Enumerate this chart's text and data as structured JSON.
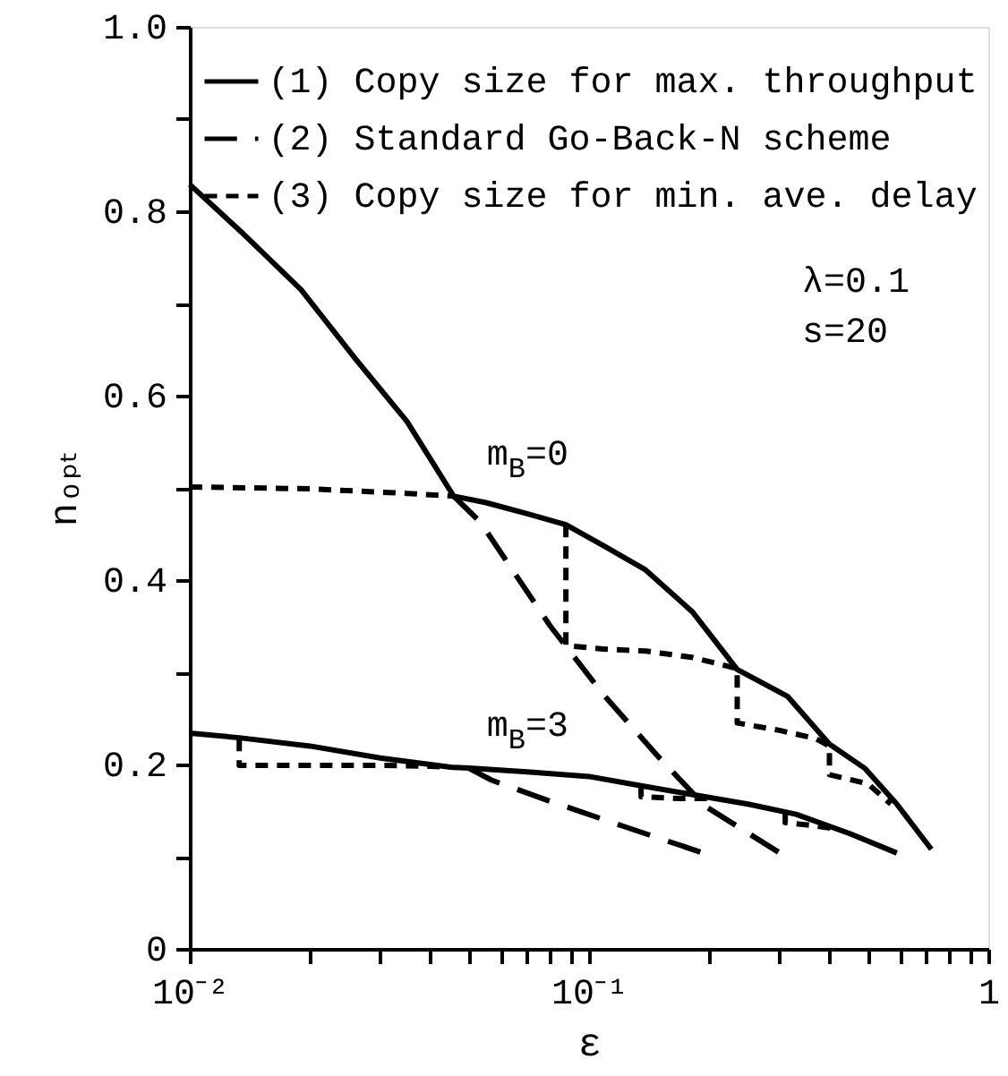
{
  "chart_data": {
    "type": "line",
    "xlabel": "ε",
    "ylabel": "nₒₚₜ",
    "log": "x",
    "xlim": [
      0.01,
      1
    ],
    "ylim": [
      0,
      1
    ],
    "xticks": [
      {
        "value": 0.01,
        "label": "10⁻²"
      },
      {
        "value": 0.02,
        "label": null
      },
      {
        "value": 0.03,
        "label": null
      },
      {
        "value": 0.04,
        "label": null
      },
      {
        "value": 0.05,
        "label": null
      },
      {
        "value": 0.06,
        "label": null
      },
      {
        "value": 0.07,
        "label": null
      },
      {
        "value": 0.08,
        "label": null
      },
      {
        "value": 0.09,
        "label": null
      },
      {
        "value": 0.1,
        "label": "10⁻¹"
      },
      {
        "value": 0.2,
        "label": null
      },
      {
        "value": 0.3,
        "label": null
      },
      {
        "value": 0.4,
        "label": null
      },
      {
        "value": 0.5,
        "label": null
      },
      {
        "value": 0.6,
        "label": null
      },
      {
        "value": 0.7,
        "label": null
      },
      {
        "value": 0.8,
        "label": null
      },
      {
        "value": 0.9,
        "label": null
      },
      1
    ],
    "yticks": [
      0,
      {
        "value": 0.1,
        "label": null
      },
      0.2,
      {
        "value": 0.3,
        "label": null
      },
      0.4,
      {
        "value": 0.5,
        "label": null
      },
      0.6,
      {
        "value": 0.7,
        "label": null
      },
      0.8,
      {
        "value": 0.9,
        "label": null
      },
      {
        "value": 1,
        "label": "1.0"
      }
    ],
    "legend": "top",
    "annotations": [
      "λ=0.1",
      "s=20",
      {
        "text": "m$_{B}$=0",
        "x": 0.05,
        "y": 0.49
      },
      {
        "text": "m$_{B}$=3",
        "x": 0.05,
        "y": 0.196
      }
    ],
    "series": [
      {
        "name": "(1) Copy size for max. throughput",
        "color": "#000000",
        "line_style": "solid",
        "x": [
          0.01,
          0.0135,
          0.019,
          0.026,
          0.035,
          0.0458,
          0.0552,
          0.07,
          0.0875,
          0.11,
          0.1386,
          0.182,
          0.235,
          0.314,
          0.4,
          0.49,
          0.59,
          0.72
        ],
        "values": [
          0.829,
          0.777,
          0.715,
          0.64,
          0.572,
          0.491,
          0.484,
          0.472,
          0.46,
          0.436,
          0.411,
          0.365,
          0.303,
          0.274,
          0.222,
          0.196,
          0.157,
          0.108
        ]
      },
      {
        "name": "(2) Standard Go-Back-N scheme",
        "color": "#000000",
        "line_style": "dashed",
        "x": [
          0.0458,
          0.0534,
          0.08,
          0.109,
          0.148,
          0.195,
          0.298
        ],
        "values": [
          0.491,
          0.463,
          0.35,
          0.275,
          0.21,
          0.155,
          0.105
        ]
      },
      {
        "name": "(3) Copy size for min. ave. delay",
        "color": "#000000",
        "line_style": "dotted",
        "x": [
          0.01,
          0.02,
          0.035,
          0.0458,
          0.07,
          0.0875,
          0.0875,
          0.11,
          0.1386,
          0.182,
          0.235,
          0.235,
          0.3,
          0.37,
          0.4,
          0.4,
          0.5,
          0.57
        ],
        "values": [
          0.501,
          0.499,
          0.494,
          0.491,
          null,
          0.46,
          0.329,
          0.325,
          0.323,
          0.316,
          0.304,
          0.245,
          0.237,
          0.228,
          0.22,
          0.189,
          0.179,
          0.157
        ]
      },
      {
        "color": "#000000",
        "line_style": "solid",
        "x": [
          0.01,
          0.0133,
          0.02,
          0.03,
          0.045,
          0.05,
          0.07,
          0.1,
          0.135,
          0.195,
          0.25,
          0.33,
          0.45,
          0.59
        ],
        "values": [
          0.234,
          0.229,
          0.22,
          0.207,
          0.197,
          0.196,
          0.192,
          0.187,
          0.177,
          0.165,
          0.157,
          0.146,
          0.125,
          0.104
        ]
      },
      {
        "color": "#000000",
        "line_style": "dashed",
        "x": [
          0.05,
          0.057,
          0.08,
          0.12,
          0.19
        ],
        "values": [
          0.196,
          0.183,
          0.16,
          0.134,
          0.105
        ]
      },
      {
        "color": "#000000",
        "line_style": "dotted",
        "x": [
          0.0133,
          0.0133,
          0.02,
          0.03,
          0.04,
          0.045,
          0.1,
          0.135,
          0.135,
          0.17,
          0.2,
          0.25,
          0.31,
          0.31,
          0.36,
          0.42
        ],
        "values": [
          0.228,
          0.199,
          0.199,
          0.199,
          0.198,
          0.197,
          null,
          0.177,
          0.165,
          0.163,
          0.163,
          null,
          0.148,
          0.137,
          0.134,
          0.13
        ]
      }
    ]
  }
}
